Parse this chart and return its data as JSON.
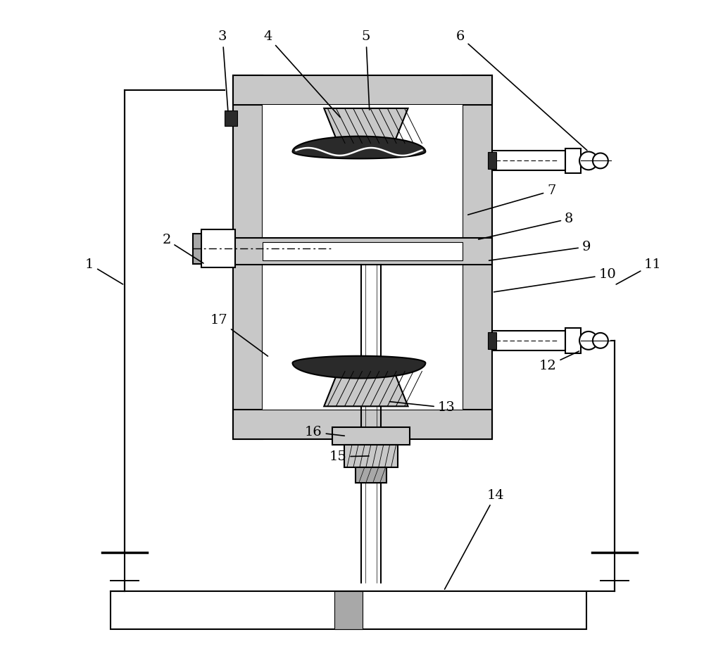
{
  "bg_color": "#ffffff",
  "lc": "#000000",
  "gl": "#c8c8c8",
  "gm": "#a8a8a8",
  "dk": "#2a2a2a",
  "white": "#ffffff",
  "lw": 1.5,
  "lw_thin": 0.8,
  "lw_thick": 2.0
}
